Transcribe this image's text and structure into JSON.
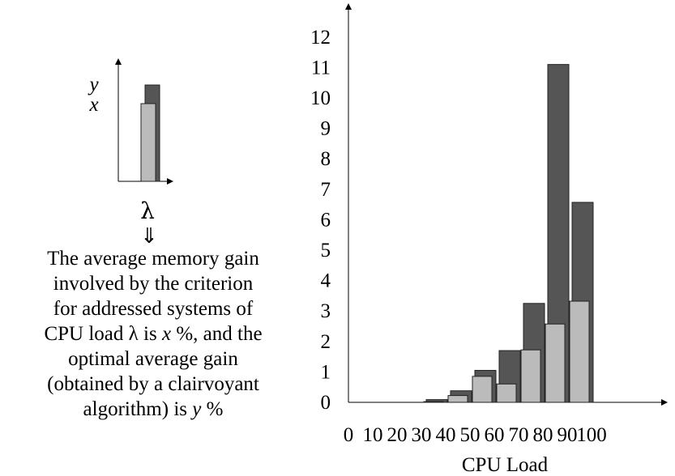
{
  "chart_data": {
    "type": "bar",
    "xlabel": "CPU Load",
    "ylabel": "",
    "x_ticks": [
      "0",
      "10",
      "20",
      "30",
      "40",
      "50",
      "60",
      "70",
      "80",
      "90",
      "100"
    ],
    "y_ticks": [
      "0",
      "1",
      "2",
      "3",
      "4",
      "5",
      "6",
      "7",
      "8",
      "9",
      "10",
      "11",
      "12"
    ],
    "ylim": [
      0,
      12.8
    ],
    "categories": [
      "0-10",
      "10-20",
      "20-30",
      "30-40",
      "40-50",
      "50-60",
      "60-70",
      "70-80",
      "80-90",
      "90-100"
    ],
    "series": [
      {
        "name": "y",
        "values": [
          0,
          0,
          0,
          0.09,
          0.38,
          1.05,
          1.7,
          3.25,
          11.1,
          6.57
        ],
        "color": "#555555"
      },
      {
        "name": "x",
        "values": [
          0,
          0,
          0,
          0.05,
          0.25,
          0.88,
          0.63,
          1.75,
          2.6,
          3.35
        ],
        "color": "#bbbbbb"
      }
    ],
    "grid": false,
    "legend": {
      "y_label": "y",
      "x_label": "x",
      "lambda": "λ",
      "arrow": "⇓",
      "text_lines": [
        "The average memory gain",
        "involved by the criterion",
        "for addressed systems of",
        "CPU load λ is x %, and the",
        "optimal average gain",
        "(obtained by a clairvoyant",
        "algorithm) is y %"
      ],
      "italic_words": [
        "x",
        "y"
      ],
      "placement": "left"
    }
  }
}
